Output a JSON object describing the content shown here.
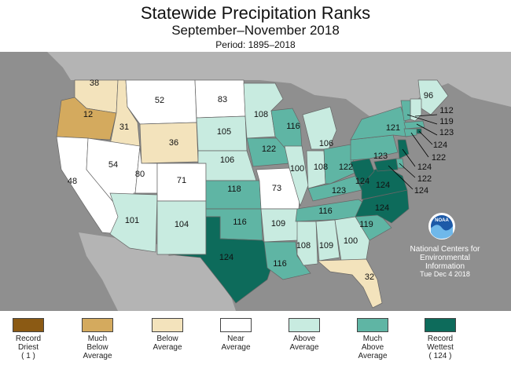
{
  "title": "Statewide Precipitation Ranks",
  "subtitle": "September–November 2018",
  "period": "Period: 1895–2018",
  "credit": {
    "logo_text": "NOAA",
    "line1": "National Centers for",
    "line2": "Environmental",
    "line3": "Information",
    "line4": "Tue Dec  4 2018"
  },
  "colors": {
    "background": "#8f8f8f",
    "land_other": "#b4b4b4",
    "record_driest": "#8b5a14",
    "much_below": "#d4aa5e",
    "below": "#f3e3bc",
    "near": "#ffffff",
    "above": "#c8ebe0",
    "much_above": "#5fb5a4",
    "record_wettest": "#0d6b5b",
    "border": "#666666"
  },
  "legend": [
    {
      "label": "Record",
      "sub": "Driest",
      "extra": "( 1 )",
      "color": "#8b5a14"
    },
    {
      "label": "Much",
      "sub": "Below",
      "extra": "Average",
      "color": "#d4aa5e"
    },
    {
      "label": "Below",
      "sub": "Average",
      "extra": "",
      "color": "#f3e3bc"
    },
    {
      "label": "Near",
      "sub": "Average",
      "extra": "",
      "color": "#ffffff"
    },
    {
      "label": "Above",
      "sub": "Average",
      "extra": "",
      "color": "#c8ebe0"
    },
    {
      "label": "Much",
      "sub": "Above",
      "extra": "Average",
      "color": "#5fb5a4"
    },
    {
      "label": "Record",
      "sub": "Wettest",
      "extra": "( 124 )",
      "color": "#0d6b5b"
    }
  ],
  "states": [
    {
      "abbr": "WA",
      "rank": "38",
      "category": "below"
    },
    {
      "abbr": "OR",
      "rank": "12",
      "category": "much_below"
    },
    {
      "abbr": "CA",
      "rank": "48",
      "category": "near"
    },
    {
      "abbr": "ID",
      "rank": "31",
      "category": "below"
    },
    {
      "abbr": "NV",
      "rank": "54",
      "category": "near"
    },
    {
      "abbr": "MT",
      "rank": "52",
      "category": "near"
    },
    {
      "abbr": "WY",
      "rank": "36",
      "category": "below"
    },
    {
      "abbr": "UT",
      "rank": "80",
      "category": "near"
    },
    {
      "abbr": "CO",
      "rank": "71",
      "category": "near"
    },
    {
      "abbr": "AZ",
      "rank": "101",
      "category": "above"
    },
    {
      "abbr": "NM",
      "rank": "104",
      "category": "above"
    },
    {
      "abbr": "ND",
      "rank": "83",
      "category": "near"
    },
    {
      "abbr": "SD",
      "rank": "105",
      "category": "above"
    },
    {
      "abbr": "NE",
      "rank": "106",
      "category": "above"
    },
    {
      "abbr": "KS",
      "rank": "118",
      "category": "much_above"
    },
    {
      "abbr": "OK",
      "rank": "116",
      "category": "much_above"
    },
    {
      "abbr": "TX",
      "rank": "124",
      "category": "record_wettest"
    },
    {
      "abbr": "MN",
      "rank": "108",
      "category": "above"
    },
    {
      "abbr": "IA",
      "rank": "122",
      "category": "much_above"
    },
    {
      "abbr": "MO",
      "rank": "73",
      "category": "near"
    },
    {
      "abbr": "AR",
      "rank": "109",
      "category": "above"
    },
    {
      "abbr": "LA",
      "rank": "116",
      "category": "much_above"
    },
    {
      "abbr": "WI",
      "rank": "116",
      "category": "much_above"
    },
    {
      "abbr": "IL",
      "rank": "100",
      "category": "above"
    },
    {
      "abbr": "MI",
      "rank": "106",
      "category": "above"
    },
    {
      "abbr": "IN",
      "rank": "108",
      "category": "above"
    },
    {
      "abbr": "OH",
      "rank": "122",
      "category": "much_above"
    },
    {
      "abbr": "KY",
      "rank": "123",
      "category": "much_above"
    },
    {
      "abbr": "TN",
      "rank": "116",
      "category": "much_above"
    },
    {
      "abbr": "MS",
      "rank": "108",
      "category": "above"
    },
    {
      "abbr": "AL",
      "rank": "109",
      "category": "above"
    },
    {
      "abbr": "GA",
      "rank": "100",
      "category": "above"
    },
    {
      "abbr": "FL",
      "rank": "32",
      "category": "below"
    },
    {
      "abbr": "SC",
      "rank": "119",
      "category": "much_above"
    },
    {
      "abbr": "NC",
      "rank": "124",
      "category": "record_wettest"
    },
    {
      "abbr": "VA",
      "rank": "124",
      "category": "record_wettest"
    },
    {
      "abbr": "WV",
      "rank": "124",
      "category": "record_wettest"
    },
    {
      "abbr": "PA",
      "rank": "123",
      "category": "much_above"
    },
    {
      "abbr": "NY",
      "rank": "121",
      "category": "much_above"
    },
    {
      "abbr": "ME",
      "rank": "96",
      "category": "above"
    },
    {
      "abbr": "NH",
      "rank": "112",
      "category": "above"
    },
    {
      "abbr": "VT",
      "rank": "119",
      "category": "much_above"
    },
    {
      "abbr": "MA",
      "rank": "123",
      "category": "much_above"
    },
    {
      "abbr": "RI",
      "rank": "124",
      "category": "record_wettest"
    },
    {
      "abbr": "CT",
      "rank": "122",
      "category": "much_above"
    },
    {
      "abbr": "NJ",
      "rank": "124",
      "category": "record_wettest"
    },
    {
      "abbr": "DE",
      "rank": "122",
      "category": "much_above"
    },
    {
      "abbr": "MD",
      "rank": "124",
      "category": "record_wettest"
    }
  ]
}
